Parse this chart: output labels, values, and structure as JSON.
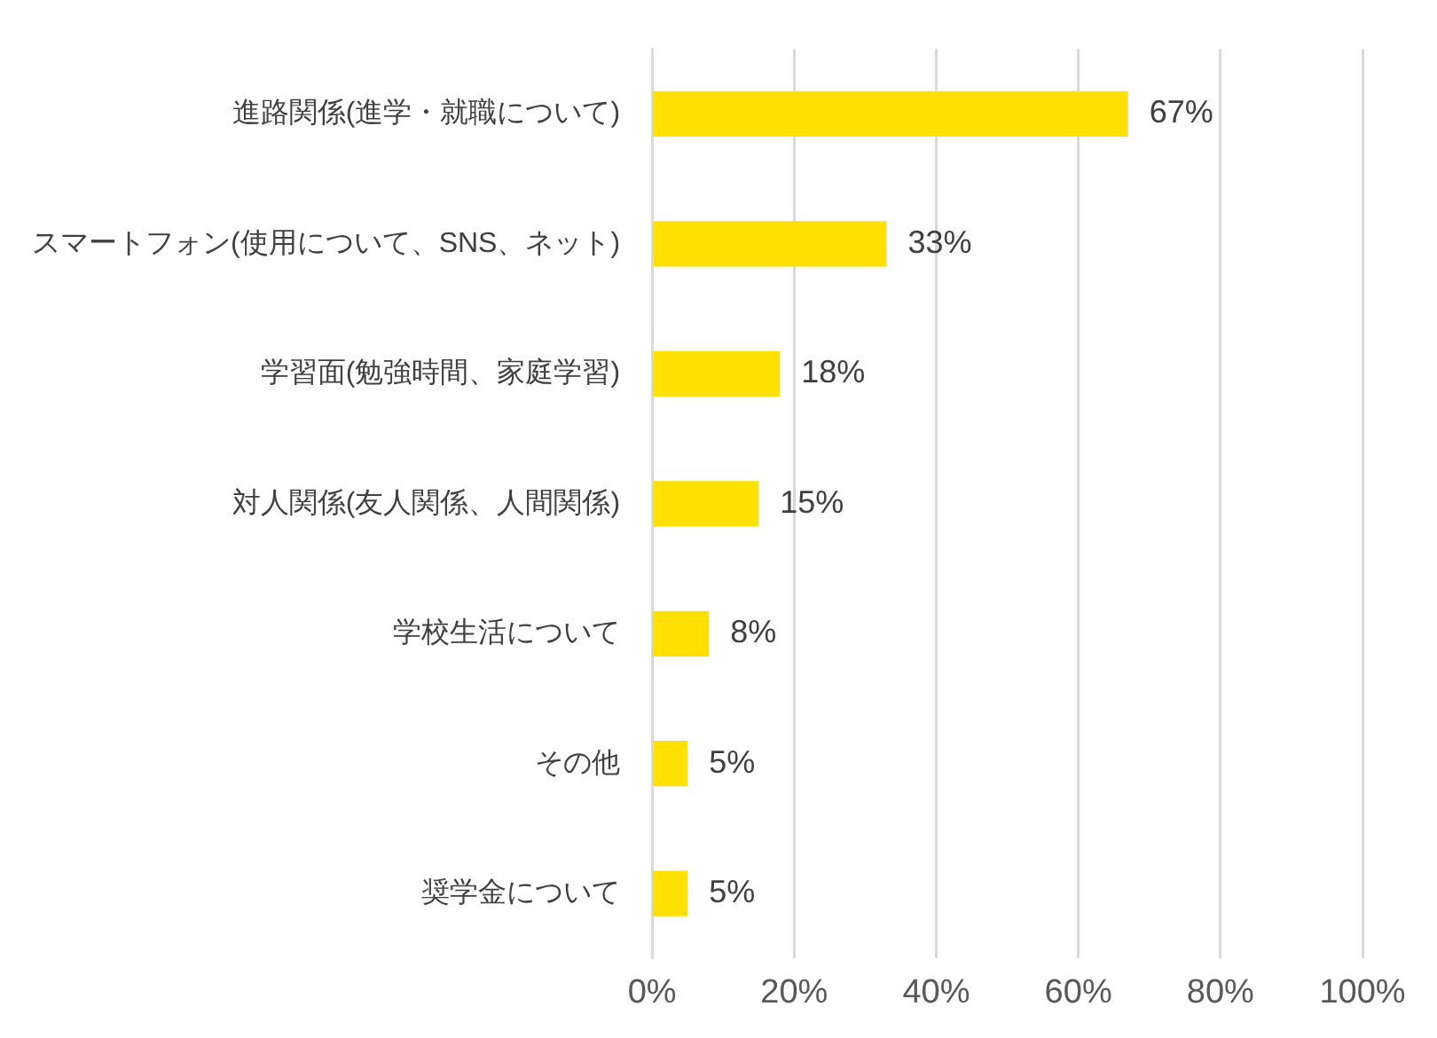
{
  "chart_data": {
    "type": "bar",
    "orientation": "horizontal",
    "categories": [
      "進路関係(進学・就職について)",
      "スマートフォン(使用について、SNS、ネット)",
      "学習面(勉強時間、家庭学習)",
      "対人関係(友人関係、人間関係)",
      "学校生活について",
      "その他",
      "奨学金について"
    ],
    "values": [
      67,
      33,
      18,
      15,
      8,
      5,
      5
    ],
    "value_labels": [
      "67%",
      "33%",
      "18%",
      "15%",
      "8%",
      "5%",
      "5%"
    ],
    "color": "#ffe000",
    "xlim": [
      0,
      100
    ],
    "xticks": [
      {
        "value": 0,
        "label": "0%"
      },
      {
        "value": 20,
        "label": "20%"
      },
      {
        "value": 40,
        "label": "40%"
      },
      {
        "value": 60,
        "label": "60%"
      },
      {
        "value": 80,
        "label": "80%"
      },
      {
        "value": 100,
        "label": "100%"
      }
    ],
    "grid": "x"
  }
}
